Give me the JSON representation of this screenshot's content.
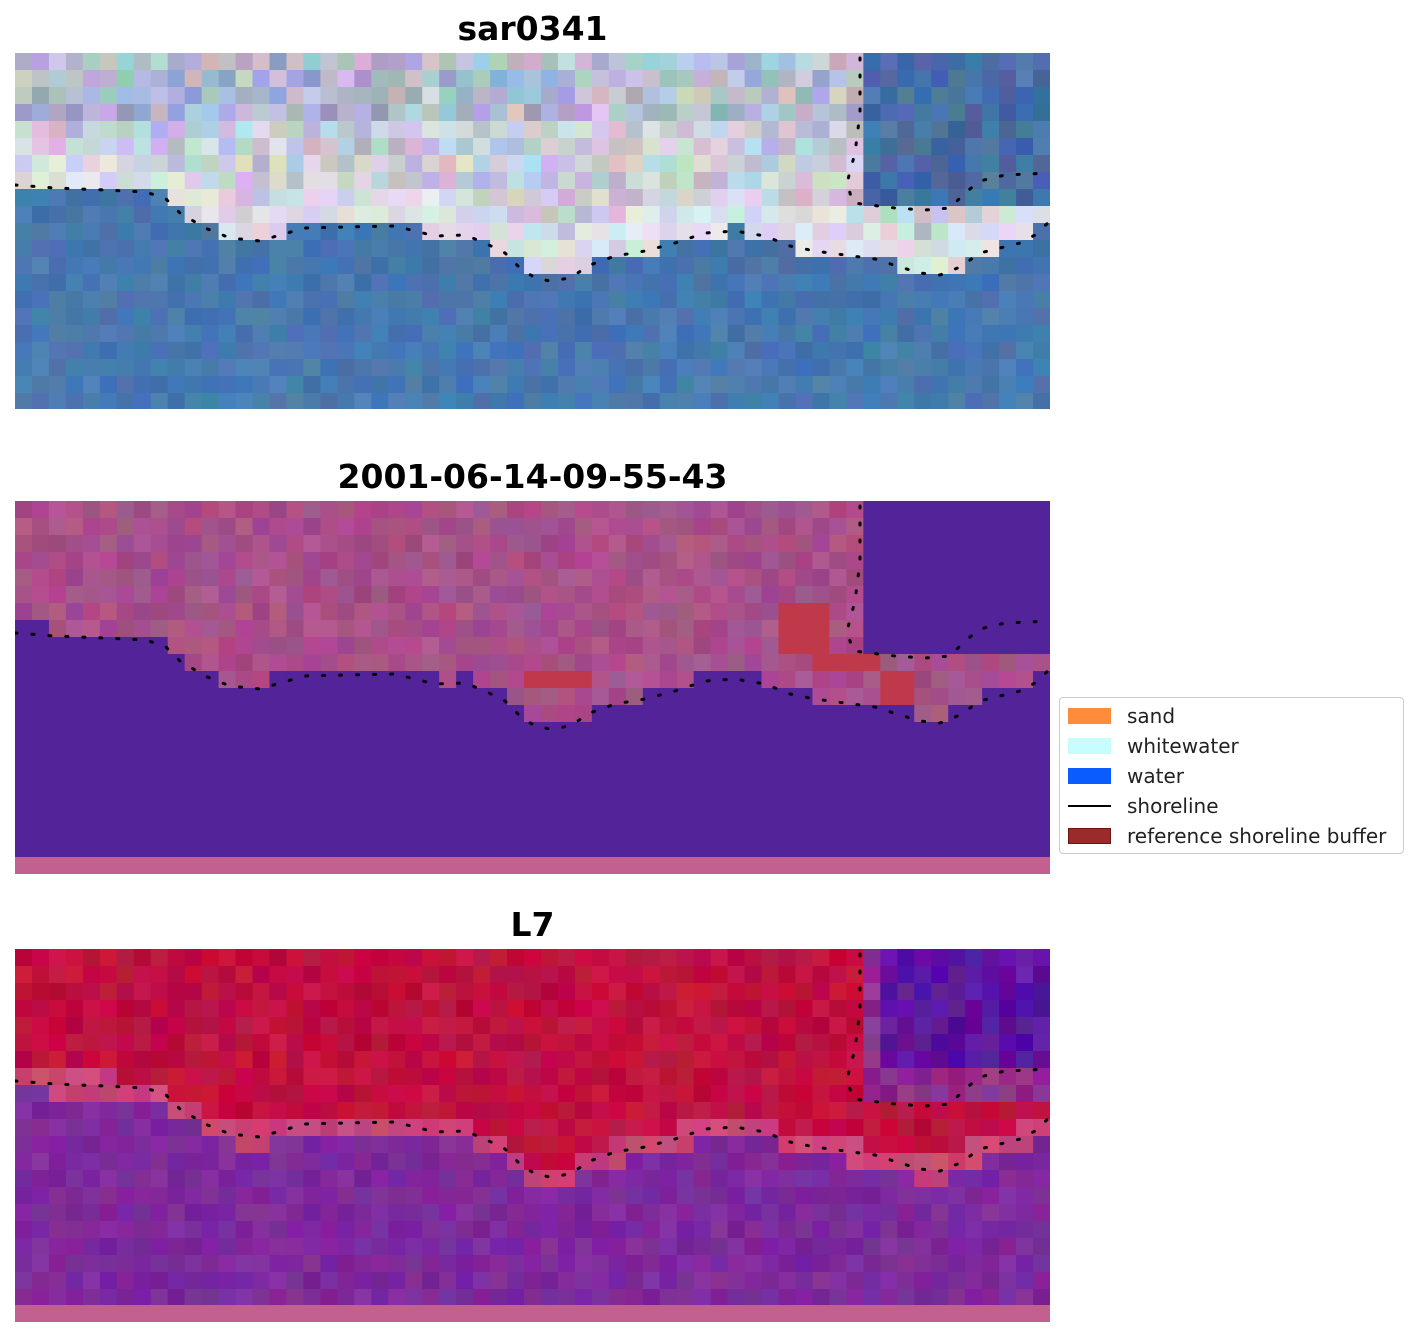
{
  "panels": [
    {
      "title": "sar0341"
    },
    {
      "title": "2001-06-14-09-55-43"
    },
    {
      "title": "L7"
    }
  ],
  "legend": {
    "items": [
      {
        "label": "sand",
        "color": "#ff8c3a",
        "kind": "patch"
      },
      {
        "label": "whitewater",
        "color": "#c8fdfd",
        "kind": "patch"
      },
      {
        "label": "water",
        "color": "#0a5cff",
        "kind": "patch"
      },
      {
        "label": "shoreline",
        "color": "#000000",
        "kind": "line"
      },
      {
        "label": "reference shoreline buffer",
        "color": "#9b2a2a",
        "kind": "patch"
      }
    ]
  },
  "colors": {
    "rgb_land": "#c9cad8",
    "rgb_sea": "#4676ad",
    "classified_land": "#a8508a",
    "classified_water": "#53239a",
    "classified_buffer": "#c0394a",
    "falsecolor_land": "#c01040",
    "falsecolor_sea": "#7e2a9c",
    "nodata_strip": "#c26090"
  }
}
